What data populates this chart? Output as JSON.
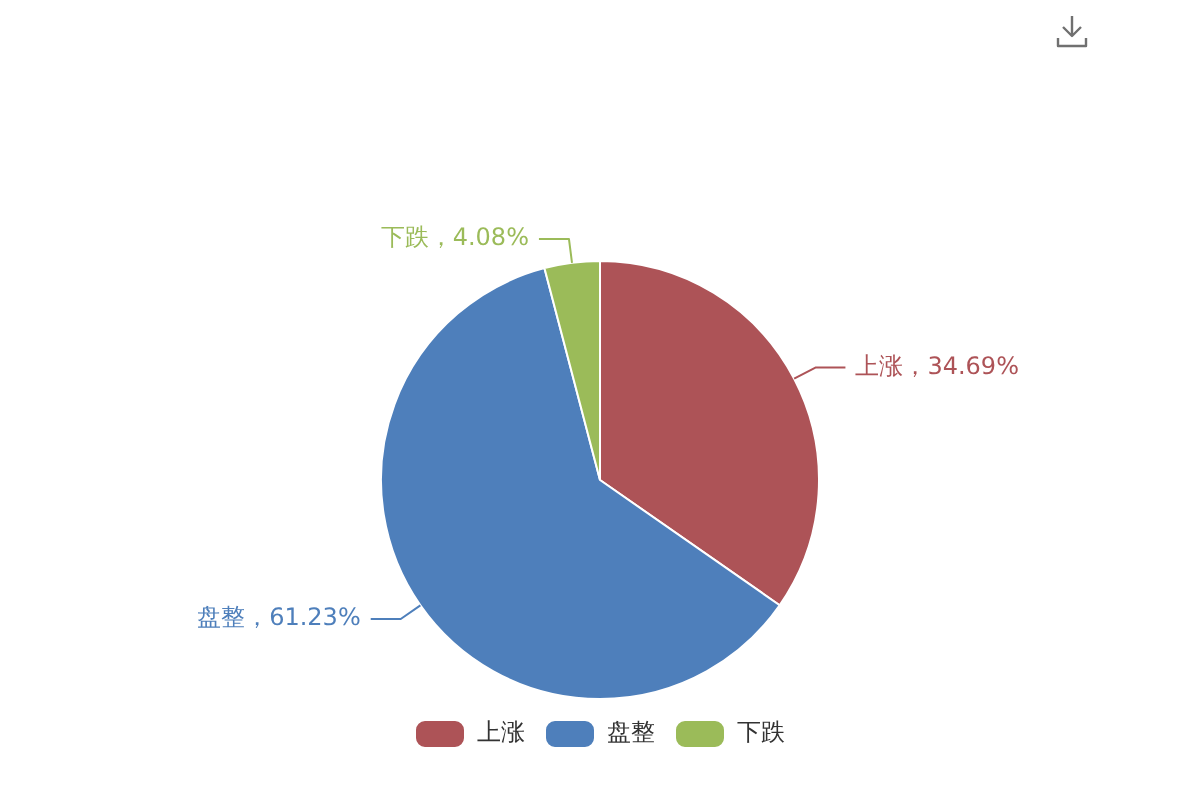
{
  "chart_data": {
    "type": "pie",
    "categories": [
      "上涨",
      "盘整",
      "下跌"
    ],
    "values": [
      34.69,
      61.23,
      4.08
    ],
    "colors": [
      "#ad5357",
      "#4e7fbb",
      "#9bbb59"
    ],
    "value_labels": [
      "上涨，34.69%",
      "盘整，61.23%",
      "下跌，4.08%"
    ],
    "legend": "bottom"
  }
}
